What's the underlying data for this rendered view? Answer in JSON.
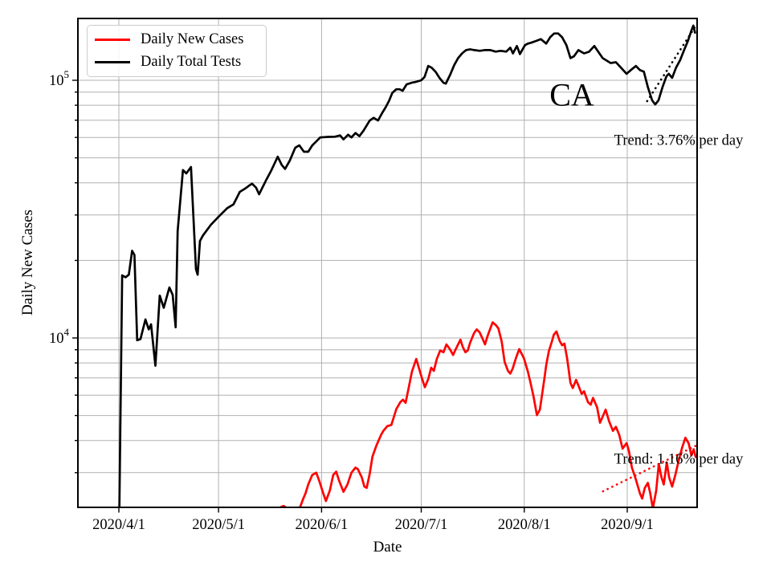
{
  "figure": {
    "xlabel": "Date",
    "ylabel": "Daily New Cases"
  },
  "legend": {
    "position": "upper left",
    "items": [
      {
        "label": "Daily New Cases",
        "color": "#ff0000"
      },
      {
        "label": "Daily Total Tests",
        "color": "#000000"
      }
    ]
  },
  "chart_data": {
    "type": "line",
    "title": "",
    "xlabel": "Date",
    "ylabel": "Daily New Cases",
    "yscale": "log",
    "ylim": [
      2200,
      173800
    ],
    "xlim_days": [
      -12.3,
      174
    ],
    "x_unit": "days since 2020/4/1",
    "grid": true,
    "grid_color": "#b0b0b0",
    "legend_position": "upper left",
    "xticks": [
      {
        "label": "2020/4/1",
        "day": 0
      },
      {
        "label": "2020/5/1",
        "day": 30
      },
      {
        "label": "2020/6/1",
        "day": 61
      },
      {
        "label": "2020/7/1",
        "day": 91
      },
      {
        "label": "2020/8/1",
        "day": 122
      },
      {
        "label": "2020/9/1",
        "day": 153
      }
    ],
    "yticks": [
      {
        "label": "10^4",
        "base": "10",
        "exp": "4",
        "value": 10000
      },
      {
        "label": "10^5",
        "base": "10",
        "exp": "5",
        "value": 100000
      }
    ],
    "annotations": [
      {
        "id": "state",
        "text": "CA",
        "day": 136.2,
        "value": 87900
      },
      {
        "id": "trend-top",
        "text": "Trend: 3.76% per day",
        "day": 168.5,
        "value": 57900
      },
      {
        "id": "trend-bottom",
        "text": "Trend: 1.16% per day",
        "day": 168.5,
        "value": 3360
      }
    ],
    "series": [
      {
        "name": "Daily New Cases",
        "color": "#ff0000",
        "style": "solid",
        "points": [
          [
            48,
            2050
          ],
          [
            48.8,
            2210
          ],
          [
            49.6,
            2230
          ],
          [
            50.4,
            2190
          ],
          [
            51.2,
            2020
          ],
          [
            52.5,
            1900
          ],
          [
            53.8,
            2000
          ],
          [
            54.5,
            2200
          ],
          [
            55.5,
            2380
          ],
          [
            56.2,
            2500
          ],
          [
            57,
            2700
          ],
          [
            58.2,
            2940
          ],
          [
            59.4,
            3000
          ],
          [
            60.3,
            2790
          ],
          [
            61.5,
            2500
          ],
          [
            62.3,
            2330
          ],
          [
            63.5,
            2560
          ],
          [
            64.5,
            2940
          ],
          [
            65.4,
            3030
          ],
          [
            66.3,
            2790
          ],
          [
            67.6,
            2530
          ],
          [
            68.8,
            2700
          ],
          [
            70,
            3000
          ],
          [
            71.2,
            3140
          ],
          [
            71.9,
            3100
          ],
          [
            73.1,
            2880
          ],
          [
            73.9,
            2650
          ],
          [
            74.6,
            2620
          ],
          [
            75.5,
            2980
          ],
          [
            76.3,
            3460
          ],
          [
            77.5,
            3820
          ],
          [
            78.9,
            4200
          ],
          [
            79.6,
            4360
          ],
          [
            80.8,
            4550
          ],
          [
            82,
            4600
          ],
          [
            83.5,
            5300
          ],
          [
            84.7,
            5630
          ],
          [
            85.5,
            5760
          ],
          [
            86.3,
            5600
          ],
          [
            87.2,
            6390
          ],
          [
            88.2,
            7400
          ],
          [
            89.5,
            8290
          ],
          [
            90.4,
            7570
          ],
          [
            91.3,
            6920
          ],
          [
            92.1,
            6440
          ],
          [
            93.1,
            6920
          ],
          [
            94,
            7670
          ],
          [
            94.8,
            7450
          ],
          [
            95.7,
            8290
          ],
          [
            96.7,
            8940
          ],
          [
            97.7,
            8800
          ],
          [
            98.6,
            9440
          ],
          [
            99.6,
            9050
          ],
          [
            100.6,
            8590
          ],
          [
            101.3,
            9000
          ],
          [
            102.8,
            9850
          ],
          [
            103.5,
            9230
          ],
          [
            104.3,
            8800
          ],
          [
            105,
            8940
          ],
          [
            105.7,
            9580
          ],
          [
            106.9,
            10450
          ],
          [
            107.7,
            10800
          ],
          [
            108.6,
            10500
          ],
          [
            109.6,
            9850
          ],
          [
            110.2,
            9440
          ],
          [
            111,
            10200
          ],
          [
            112.5,
            11500
          ],
          [
            113.5,
            11200
          ],
          [
            114.2,
            10900
          ],
          [
            115.2,
            9720
          ],
          [
            116.1,
            8080
          ],
          [
            117.1,
            7450
          ],
          [
            117.8,
            7280
          ],
          [
            118.5,
            7600
          ],
          [
            119.5,
            8350
          ],
          [
            120.5,
            9050
          ],
          [
            121.9,
            8350
          ],
          [
            123.1,
            7400
          ],
          [
            123.9,
            6690
          ],
          [
            124.8,
            5930
          ],
          [
            125.8,
            5020
          ],
          [
            126.7,
            5270
          ],
          [
            127.4,
            6070
          ],
          [
            128,
            6870
          ],
          [
            128.6,
            7840
          ],
          [
            129.4,
            8890
          ],
          [
            130.2,
            9580
          ],
          [
            130.9,
            10300
          ],
          [
            131.7,
            10600
          ],
          [
            132.7,
            9720
          ],
          [
            133.4,
            9370
          ],
          [
            134.1,
            9510
          ],
          [
            134.9,
            8350
          ],
          [
            135.9,
            6690
          ],
          [
            136.6,
            6390
          ],
          [
            137.6,
            6870
          ],
          [
            138.3,
            6540
          ],
          [
            139.3,
            6070
          ],
          [
            140,
            6210
          ],
          [
            141.2,
            5630
          ],
          [
            142,
            5510
          ],
          [
            142.7,
            5850
          ],
          [
            143.9,
            5390
          ],
          [
            144.8,
            4690
          ],
          [
            145.8,
            5020
          ],
          [
            146.5,
            5270
          ],
          [
            147.5,
            4760
          ],
          [
            148.7,
            4360
          ],
          [
            149.6,
            4520
          ],
          [
            150.6,
            4200
          ],
          [
            151.6,
            3720
          ],
          [
            152.8,
            3910
          ],
          [
            153.5,
            3640
          ],
          [
            154.4,
            3140
          ],
          [
            155.4,
            2880
          ],
          [
            156.8,
            2500
          ],
          [
            157.5,
            2380
          ],
          [
            158.3,
            2620
          ],
          [
            159.2,
            2740
          ],
          [
            159.9,
            2500
          ],
          [
            160.7,
            2180
          ],
          [
            161.7,
            2550
          ],
          [
            162.5,
            3240
          ],
          [
            163.3,
            2880
          ],
          [
            164,
            2700
          ],
          [
            164.9,
            3290
          ],
          [
            165.6,
            2880
          ],
          [
            166.5,
            2650
          ],
          [
            167.5,
            2950
          ],
          [
            168.5,
            3350
          ],
          [
            169.5,
            3750
          ],
          [
            170.5,
            4100
          ],
          [
            171.5,
            3900
          ],
          [
            172.3,
            3500
          ],
          [
            173,
            3700
          ],
          [
            173.6,
            3450
          ]
        ]
      },
      {
        "name": "Daily Total Tests",
        "color": "#000000",
        "style": "solid",
        "points": [
          [
            0,
            1500
          ],
          [
            1,
            17500
          ],
          [
            2,
            17200
          ],
          [
            3,
            17600
          ],
          [
            4,
            21800
          ],
          [
            4.7,
            21000
          ],
          [
            5.5,
            9800
          ],
          [
            6.5,
            9900
          ],
          [
            8,
            11800
          ],
          [
            9,
            10800
          ],
          [
            9.7,
            11300
          ],
          [
            11,
            7800
          ],
          [
            12.3,
            14600
          ],
          [
            13.5,
            13100
          ],
          [
            15.2,
            15700
          ],
          [
            16.2,
            14700
          ],
          [
            17.1,
            11000
          ],
          [
            17.7,
            26000
          ],
          [
            19.3,
            44800
          ],
          [
            20.3,
            43500
          ],
          [
            21.7,
            46100
          ],
          [
            23.2,
            18500
          ],
          [
            23.7,
            17600
          ],
          [
            24.4,
            23800
          ],
          [
            25.3,
            25000
          ],
          [
            27.7,
            27500
          ],
          [
            30.2,
            29700
          ],
          [
            32.6,
            31900
          ],
          [
            34.5,
            33000
          ],
          [
            36.4,
            36900
          ],
          [
            38,
            38000
          ],
          [
            39.3,
            39100
          ],
          [
            40.1,
            39700
          ],
          [
            41.3,
            38300
          ],
          [
            42.2,
            36100
          ],
          [
            44.2,
            40700
          ],
          [
            45.8,
            44500
          ],
          [
            47.8,
            50500
          ],
          [
            49,
            47000
          ],
          [
            50,
            45300
          ],
          [
            51.4,
            48700
          ],
          [
            53.1,
            54800
          ],
          [
            54.3,
            55900
          ],
          [
            55.7,
            52800
          ],
          [
            57,
            52800
          ],
          [
            58.2,
            55900
          ],
          [
            59.4,
            57900
          ],
          [
            60.6,
            60000
          ],
          [
            63,
            60300
          ],
          [
            65,
            60400
          ],
          [
            66.6,
            61100
          ],
          [
            67.6,
            59000
          ],
          [
            69,
            61500
          ],
          [
            70,
            60000
          ],
          [
            71.2,
            62400
          ],
          [
            72.4,
            60700
          ],
          [
            73.6,
            63700
          ],
          [
            75.5,
            69800
          ],
          [
            76.7,
            71500
          ],
          [
            78,
            69800
          ],
          [
            79.2,
            74500
          ],
          [
            80.4,
            79000
          ],
          [
            81.3,
            83200
          ],
          [
            82.3,
            89400
          ],
          [
            83.5,
            92300
          ],
          [
            84.5,
            92300
          ],
          [
            85.4,
            91000
          ],
          [
            86.6,
            96400
          ],
          [
            88.1,
            97800
          ],
          [
            89.3,
            98500
          ],
          [
            91,
            100000
          ],
          [
            92,
            103000
          ],
          [
            93.1,
            113600
          ],
          [
            94.1,
            112000
          ],
          [
            95.3,
            108000
          ],
          [
            96.5,
            102200
          ],
          [
            97.7,
            97800
          ],
          [
            98.4,
            97100
          ],
          [
            99.7,
            105100
          ],
          [
            100.9,
            114400
          ],
          [
            102.1,
            121900
          ],
          [
            103.3,
            127200
          ],
          [
            104.5,
            131000
          ],
          [
            105.7,
            131900
          ],
          [
            107,
            131000
          ],
          [
            108.6,
            130100
          ],
          [
            110.1,
            131000
          ],
          [
            111.8,
            131000
          ],
          [
            113.4,
            129200
          ],
          [
            114.9,
            130100
          ],
          [
            116.6,
            129200
          ],
          [
            117.8,
            133800
          ],
          [
            118.6,
            127200
          ],
          [
            119.8,
            135800
          ],
          [
            120.7,
            126300
          ],
          [
            122.2,
            136800
          ],
          [
            123.1,
            138800
          ],
          [
            124,
            139800
          ],
          [
            125.5,
            142000
          ],
          [
            127,
            144500
          ],
          [
            128.6,
            138800
          ],
          [
            129.8,
            146900
          ],
          [
            131,
            151900
          ],
          [
            132.2,
            151900
          ],
          [
            133.4,
            146900
          ],
          [
            134.7,
            136800
          ],
          [
            135.9,
            121900
          ],
          [
            137,
            124000
          ],
          [
            138.3,
            131000
          ],
          [
            140,
            127200
          ],
          [
            141.5,
            129000
          ],
          [
            143.1,
            135800
          ],
          [
            145.6,
            121900
          ],
          [
            148,
            116700
          ],
          [
            149.6,
            117500
          ],
          [
            151.1,
            112000
          ],
          [
            152.8,
            106000
          ],
          [
            154.4,
            110400
          ],
          [
            155.6,
            113600
          ],
          [
            156.8,
            109600
          ],
          [
            158,
            108000
          ],
          [
            159.2,
            94000
          ],
          [
            160.5,
            83600
          ],
          [
            161.4,
            80600
          ],
          [
            162.4,
            83600
          ],
          [
            163.6,
            94000
          ],
          [
            164.8,
            103600
          ],
          [
            165.5,
            106000
          ],
          [
            166.5,
            102200
          ],
          [
            167.7,
            112000
          ],
          [
            168.9,
            119600
          ],
          [
            170.1,
            131000
          ],
          [
            171.3,
            142500
          ],
          [
            172.3,
            156000
          ],
          [
            172.9,
            163000
          ],
          [
            173.4,
            153000
          ]
        ]
      },
      {
        "name": "Tests trend 3.76% per day",
        "color": "#000000",
        "style": "dotted",
        "points": [
          [
            159,
            83000
          ],
          [
            173.8,
            164000
          ]
        ]
      },
      {
        "name": "Cases trend 1.16% per day",
        "color": "#ff0000",
        "style": "dotted",
        "points": [
          [
            145.7,
            2540
          ],
          [
            173.7,
            3820
          ]
        ]
      }
    ]
  }
}
